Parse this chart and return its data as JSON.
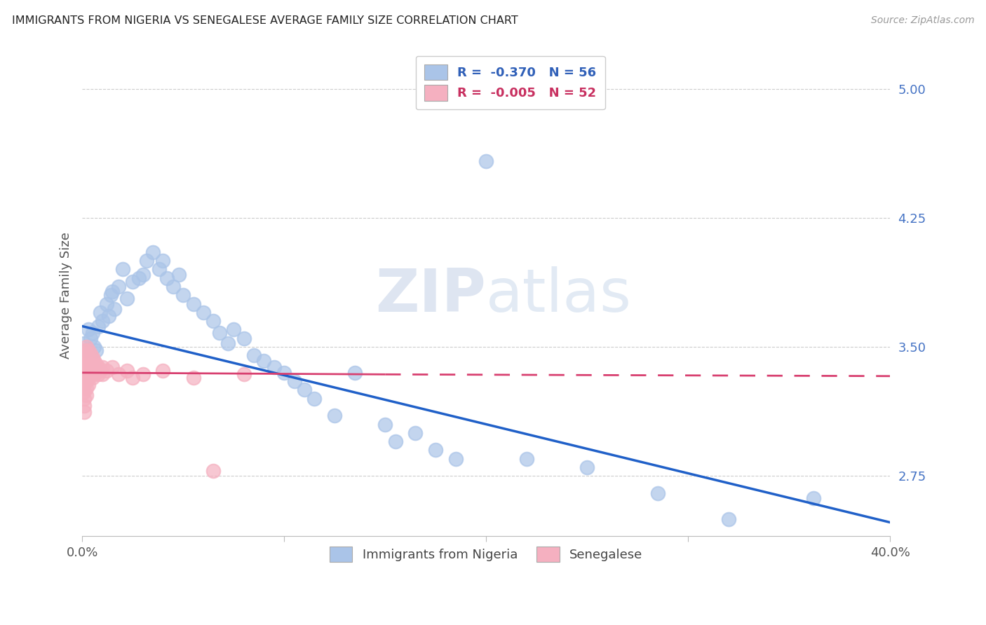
{
  "title": "IMMIGRANTS FROM NIGERIA VS SENEGALESE AVERAGE FAMILY SIZE CORRELATION CHART",
  "source": "Source: ZipAtlas.com",
  "ylabel": "Average Family Size",
  "watermark": "ZIPatlas",
  "legend_label1": "Immigrants from Nigeria",
  "legend_label2": "Senegalese",
  "legend_r1": "-0.370",
  "legend_n1": "56",
  "legend_r2": "-0.005",
  "legend_n2": "52",
  "nigeria_face_color": "#aac4e8",
  "nigeria_edge_color": "#aac4e8",
  "senegal_face_color": "#f5b0c0",
  "senegal_edge_color": "#f5b0c0",
  "nigeria_line_color": "#2060c8",
  "senegal_line_color": "#d84070",
  "xlim": [
    0.0,
    0.4
  ],
  "ylim": [
    2.4,
    5.2
  ],
  "background_color": "#ffffff",
  "nigeria_x": [
    0.001,
    0.002,
    0.003,
    0.004,
    0.005,
    0.006,
    0.007,
    0.008,
    0.009,
    0.01,
    0.012,
    0.013,
    0.014,
    0.015,
    0.016,
    0.018,
    0.02,
    0.022,
    0.025,
    0.028,
    0.03,
    0.032,
    0.035,
    0.038,
    0.04,
    0.042,
    0.045,
    0.048,
    0.05,
    0.055,
    0.06,
    0.065,
    0.068,
    0.072,
    0.075,
    0.08,
    0.085,
    0.09,
    0.095,
    0.1,
    0.105,
    0.11,
    0.115,
    0.125,
    0.135,
    0.15,
    0.165,
    0.2,
    0.155,
    0.175,
    0.22,
    0.25,
    0.285,
    0.185,
    0.32,
    0.362
  ],
  "nigeria_y": [
    3.52,
    3.48,
    3.6,
    3.55,
    3.58,
    3.5,
    3.48,
    3.62,
    3.7,
    3.65,
    3.75,
    3.68,
    3.8,
    3.82,
    3.72,
    3.85,
    3.95,
    3.78,
    3.88,
    3.9,
    3.92,
    4.0,
    4.05,
    3.95,
    4.0,
    3.9,
    3.85,
    3.92,
    3.8,
    3.75,
    3.7,
    3.65,
    3.58,
    3.52,
    3.6,
    3.55,
    3.45,
    3.42,
    3.38,
    3.35,
    3.3,
    3.25,
    3.2,
    3.1,
    3.35,
    3.05,
    3.0,
    4.58,
    2.95,
    2.9,
    2.85,
    2.8,
    2.65,
    2.85,
    2.5,
    2.62
  ],
  "senegal_x": [
    0.001,
    0.001,
    0.001,
    0.001,
    0.001,
    0.001,
    0.001,
    0.001,
    0.001,
    0.001,
    0.002,
    0.002,
    0.002,
    0.002,
    0.002,
    0.002,
    0.002,
    0.002,
    0.003,
    0.003,
    0.003,
    0.003,
    0.003,
    0.003,
    0.004,
    0.004,
    0.004,
    0.004,
    0.005,
    0.005,
    0.005,
    0.005,
    0.006,
    0.006,
    0.006,
    0.007,
    0.007,
    0.008,
    0.008,
    0.009,
    0.01,
    0.01,
    0.012,
    0.015,
    0.018,
    0.022,
    0.025,
    0.03,
    0.04,
    0.055,
    0.08,
    0.065
  ],
  "senegal_y": [
    3.48,
    3.44,
    3.4,
    3.36,
    3.32,
    3.28,
    3.24,
    3.2,
    3.16,
    3.12,
    3.5,
    3.46,
    3.42,
    3.38,
    3.34,
    3.3,
    3.26,
    3.22,
    3.48,
    3.44,
    3.4,
    3.36,
    3.32,
    3.28,
    3.46,
    3.42,
    3.38,
    3.34,
    3.44,
    3.4,
    3.36,
    3.32,
    3.42,
    3.38,
    3.34,
    3.4,
    3.36,
    3.38,
    3.34,
    3.36,
    3.38,
    3.34,
    3.36,
    3.38,
    3.34,
    3.36,
    3.32,
    3.34,
    3.36,
    3.32,
    3.34,
    2.78
  ],
  "ng_line_x0": 0.0,
  "ng_line_y0": 3.62,
  "ng_line_x1": 0.4,
  "ng_line_y1": 2.48,
  "sn_line_solid_x0": 0.0,
  "sn_line_solid_y0": 3.35,
  "sn_line_solid_x1": 0.15,
  "sn_line_solid_y1": 3.34,
  "sn_line_dash_x0": 0.15,
  "sn_line_dash_y0": 3.34,
  "sn_line_dash_x1": 0.4,
  "sn_line_dash_y1": 3.33
}
